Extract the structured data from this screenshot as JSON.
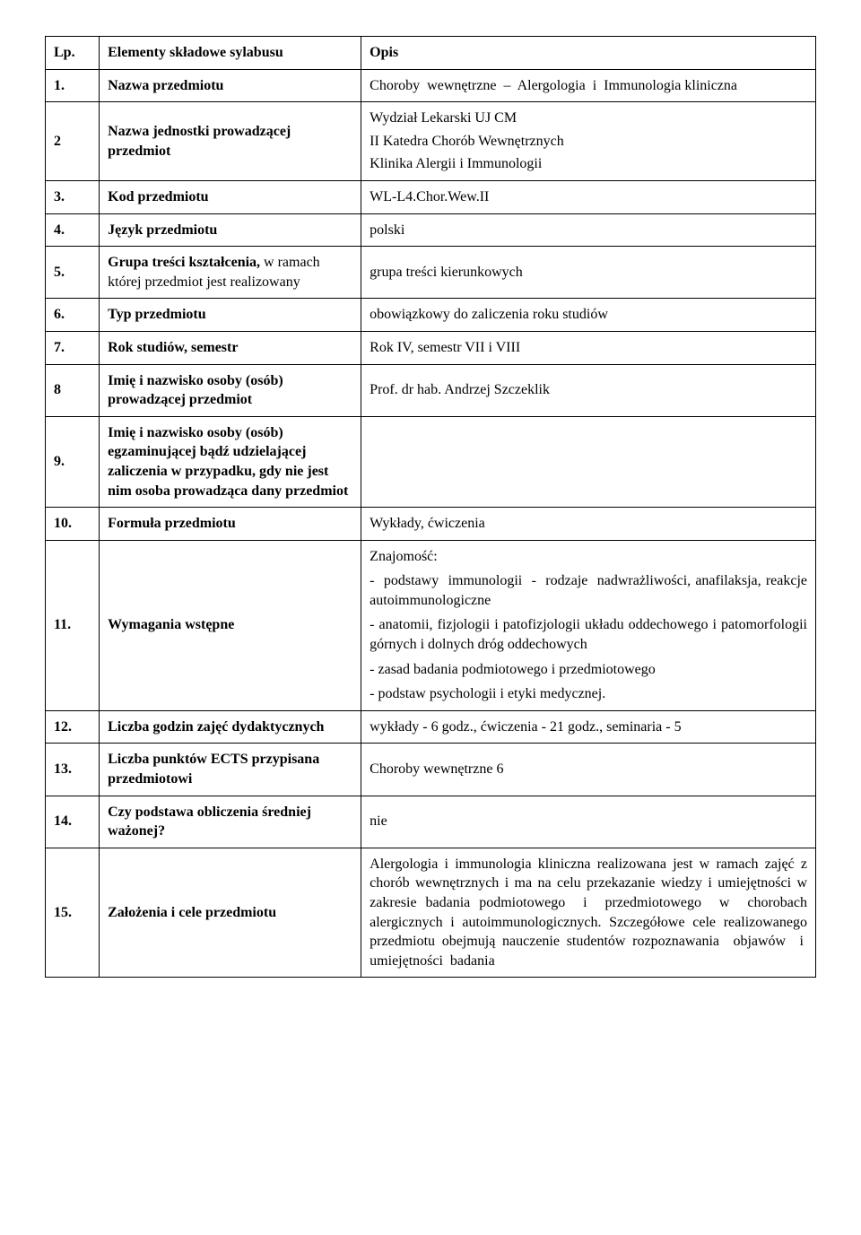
{
  "header": {
    "lp": "Lp.",
    "elementy": "Elementy składowe sylabusu",
    "opis": "Opis"
  },
  "rows": [
    {
      "num": "1.",
      "label_html": "Nazwa przedmiotu",
      "opis_html": "<div class='justify'>Choroby&nbsp; wewnętrzne&nbsp; –&nbsp; Alergologia&nbsp; i&nbsp; Immunologia kliniczna</div>"
    },
    {
      "num": "2",
      "label_html": "Nazwa jednostki prowadzącej przedmiot",
      "opis_html": "<div class='multiline'><div>Wydział Lekarski UJ CM</div><div>II Katedra Chorób Wewnętrznych</div><div>Klinika Alergii i Immunologii</div></div>"
    },
    {
      "num": "3.",
      "label_html": "Kod przedmiotu",
      "opis_html": "WL-L4.Chor.Wew.II"
    },
    {
      "num": "4.",
      "label_html": "Język przedmiotu",
      "opis_html": "polski"
    },
    {
      "num": "5.",
      "label_html": "Grupa treści kształcenia, <span class='nobold'>w ramach której przedmiot jest realizowany</span>",
      "opis_html": "grupa treści kierunkowych"
    },
    {
      "num": "6.",
      "label_html": "Typ przedmiotu",
      "opis_html": "obowiązkowy do zaliczenia roku studiów"
    },
    {
      "num": "7.",
      "label_html": "Rok studiów, semestr",
      "opis_html": "Rok IV, semestr VII i VIII"
    },
    {
      "num": "8",
      "label_html": "Imię i nazwisko osoby (osób) prowadzącej przedmiot",
      "opis_html": "Prof. dr hab. Andrzej Szczeklik"
    },
    {
      "num": "9.",
      "label_html": "Imię i nazwisko osoby (osób) egzaminującej bądź udzielającej zaliczenia w przypadku, gdy nie jest nim osoba prowadząca dany przedmiot",
      "opis_html": ""
    },
    {
      "num": "10.",
      "label_html": "Formuła przedmiotu",
      "opis_html": "Wykłady, ćwiczenia"
    },
    {
      "num": "11.",
      "label_html": "Wymagania wstępne",
      "opis_html": "<div class='opis-block'><p>Znajomość:</p><p class='justify'>-&nbsp; podstawy&nbsp; immunologii&nbsp; -&nbsp; rodzaje&nbsp; nadwrażliwości, anafilaksja, reakcje autoimmunologiczne</p><p class='justify'>- anatomii, fizjologii i patofizjologii układu oddechowego i patomorfologii górnych i dolnych dróg oddechowych</p><p>- zasad badania podmiotowego i przedmiotowego</p><p>- podstaw psychologii i etyki medycznej.</p></div>"
    },
    {
      "num": "12.",
      "label_html": "Liczba godzin zajęć dydaktycznych",
      "opis_html": "wykłady -  6 godz., ćwiczenia - 21 godz., seminaria - 5"
    },
    {
      "num": "13.",
      "label_html": "Liczba punktów ECTS przypisana przedmiotowi",
      "opis_html": "Choroby wewnętrzne 6"
    },
    {
      "num": "14.",
      "label_html": "Czy podstawa obliczenia średniej ważonej?",
      "opis_html": "nie"
    },
    {
      "num": "15.",
      "label_html": "Założenia i cele przedmiotu",
      "opis_html": "<div class='justify'>Alergologia i immunologia kliniczna realizowana jest w ramach zajęć z chorób wewnętrznych i ma na celu przekazanie wiedzy i umiejętności w zakresie badania podmiotowego&nbsp; i&nbsp; przedmiotowego&nbsp; w&nbsp; chorobach alergicznych i autoimmunologicznych. Szczegółowe cele realizowanego przedmiotu obejmują nauczenie studentów rozpoznawania&nbsp; objawów&nbsp; i&nbsp; umiejętności&nbsp; badania</div>"
    }
  ]
}
